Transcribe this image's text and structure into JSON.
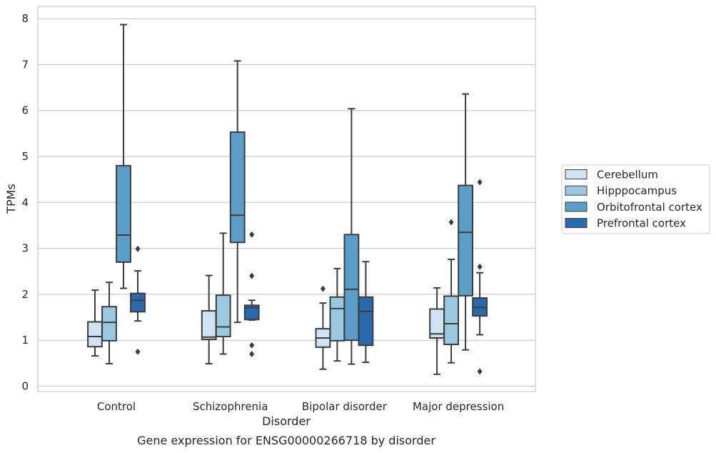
{
  "chart_data": {
    "type": "box",
    "title": "",
    "caption": "Gene expression for ENSG00000266718 by disorder",
    "xlabel": "Disorder",
    "ylabel": "TPMs",
    "ylim": [
      -0.1,
      8.25
    ],
    "yticks": [
      0,
      1,
      2,
      3,
      4,
      5,
      6,
      7,
      8
    ],
    "grid": "horizontal",
    "legend_position": "right",
    "categories": [
      "Control",
      "Schizophrenia",
      "Bipolar disorder",
      "Major depression"
    ],
    "series": [
      {
        "name": "Cerebellum",
        "color": "#d1e2f2",
        "boxes": [
          {
            "whislo": 0.66,
            "q1": 0.86,
            "med": 1.08,
            "q3": 1.4,
            "whishi": 2.09,
            "fliers": []
          },
          {
            "whislo": 0.49,
            "q1": 1.02,
            "med": 1.07,
            "q3": 1.64,
            "whishi": 2.41,
            "fliers": []
          },
          {
            "whislo": 0.37,
            "q1": 0.85,
            "med": 1.05,
            "q3": 1.25,
            "whishi": 1.81,
            "fliers": [
              2.12
            ]
          },
          {
            "whislo": 0.26,
            "q1": 1.05,
            "med": 1.14,
            "q3": 1.68,
            "whishi": 2.14,
            "fliers": []
          }
        ]
      },
      {
        "name": "Hipppocampus",
        "color": "#9ac8e0",
        "boxes": [
          {
            "whislo": 0.49,
            "q1": 0.99,
            "med": 1.39,
            "q3": 1.73,
            "whishi": 2.26,
            "fliers": []
          },
          {
            "whislo": 0.7,
            "q1": 1.08,
            "med": 1.29,
            "q3": 1.98,
            "whishi": 3.33,
            "fliers": []
          },
          {
            "whislo": 0.55,
            "q1": 0.99,
            "med": 1.69,
            "q3": 1.94,
            "whishi": 2.56,
            "fliers": []
          },
          {
            "whislo": 0.51,
            "q1": 0.91,
            "med": 1.36,
            "q3": 1.96,
            "whishi": 2.76,
            "fliers": [
              3.57
            ]
          }
        ]
      },
      {
        "name": "Orbitofrontal cortex",
        "color": "#5a9ec9",
        "boxes": [
          {
            "whislo": 2.13,
            "q1": 2.7,
            "med": 3.29,
            "q3": 4.8,
            "whishi": 7.87,
            "fliers": []
          },
          {
            "whislo": 1.39,
            "q1": 3.13,
            "med": 3.72,
            "q3": 5.53,
            "whishi": 7.08,
            "fliers": []
          },
          {
            "whislo": 0.48,
            "q1": 1.0,
            "med": 2.11,
            "q3": 3.3,
            "whishi": 6.04,
            "fliers": []
          },
          {
            "whislo": 0.79,
            "q1": 1.97,
            "med": 3.35,
            "q3": 4.37,
            "whishi": 6.36,
            "fliers": []
          }
        ]
      },
      {
        "name": "Prefrontal cortex",
        "color": "#2a69ac",
        "boxes": [
          {
            "whislo": 1.42,
            "q1": 1.62,
            "med": 1.87,
            "q3": 2.02,
            "whishi": 2.51,
            "fliers": [
              0.75,
              2.99
            ]
          },
          {
            "whislo": 1.44,
            "q1": 1.45,
            "med": 1.71,
            "q3": 1.76,
            "whishi": 1.87,
            "fliers": [
              0.7,
              0.89,
              2.4,
              3.3
            ]
          },
          {
            "whislo": 0.52,
            "q1": 0.89,
            "med": 1.63,
            "q3": 1.94,
            "whishi": 2.71,
            "fliers": []
          },
          {
            "whislo": 1.12,
            "q1": 1.53,
            "med": 1.71,
            "q3": 1.92,
            "whishi": 2.47,
            "fliers": [
              0.32,
              2.6,
              4.44
            ]
          }
        ]
      }
    ]
  }
}
